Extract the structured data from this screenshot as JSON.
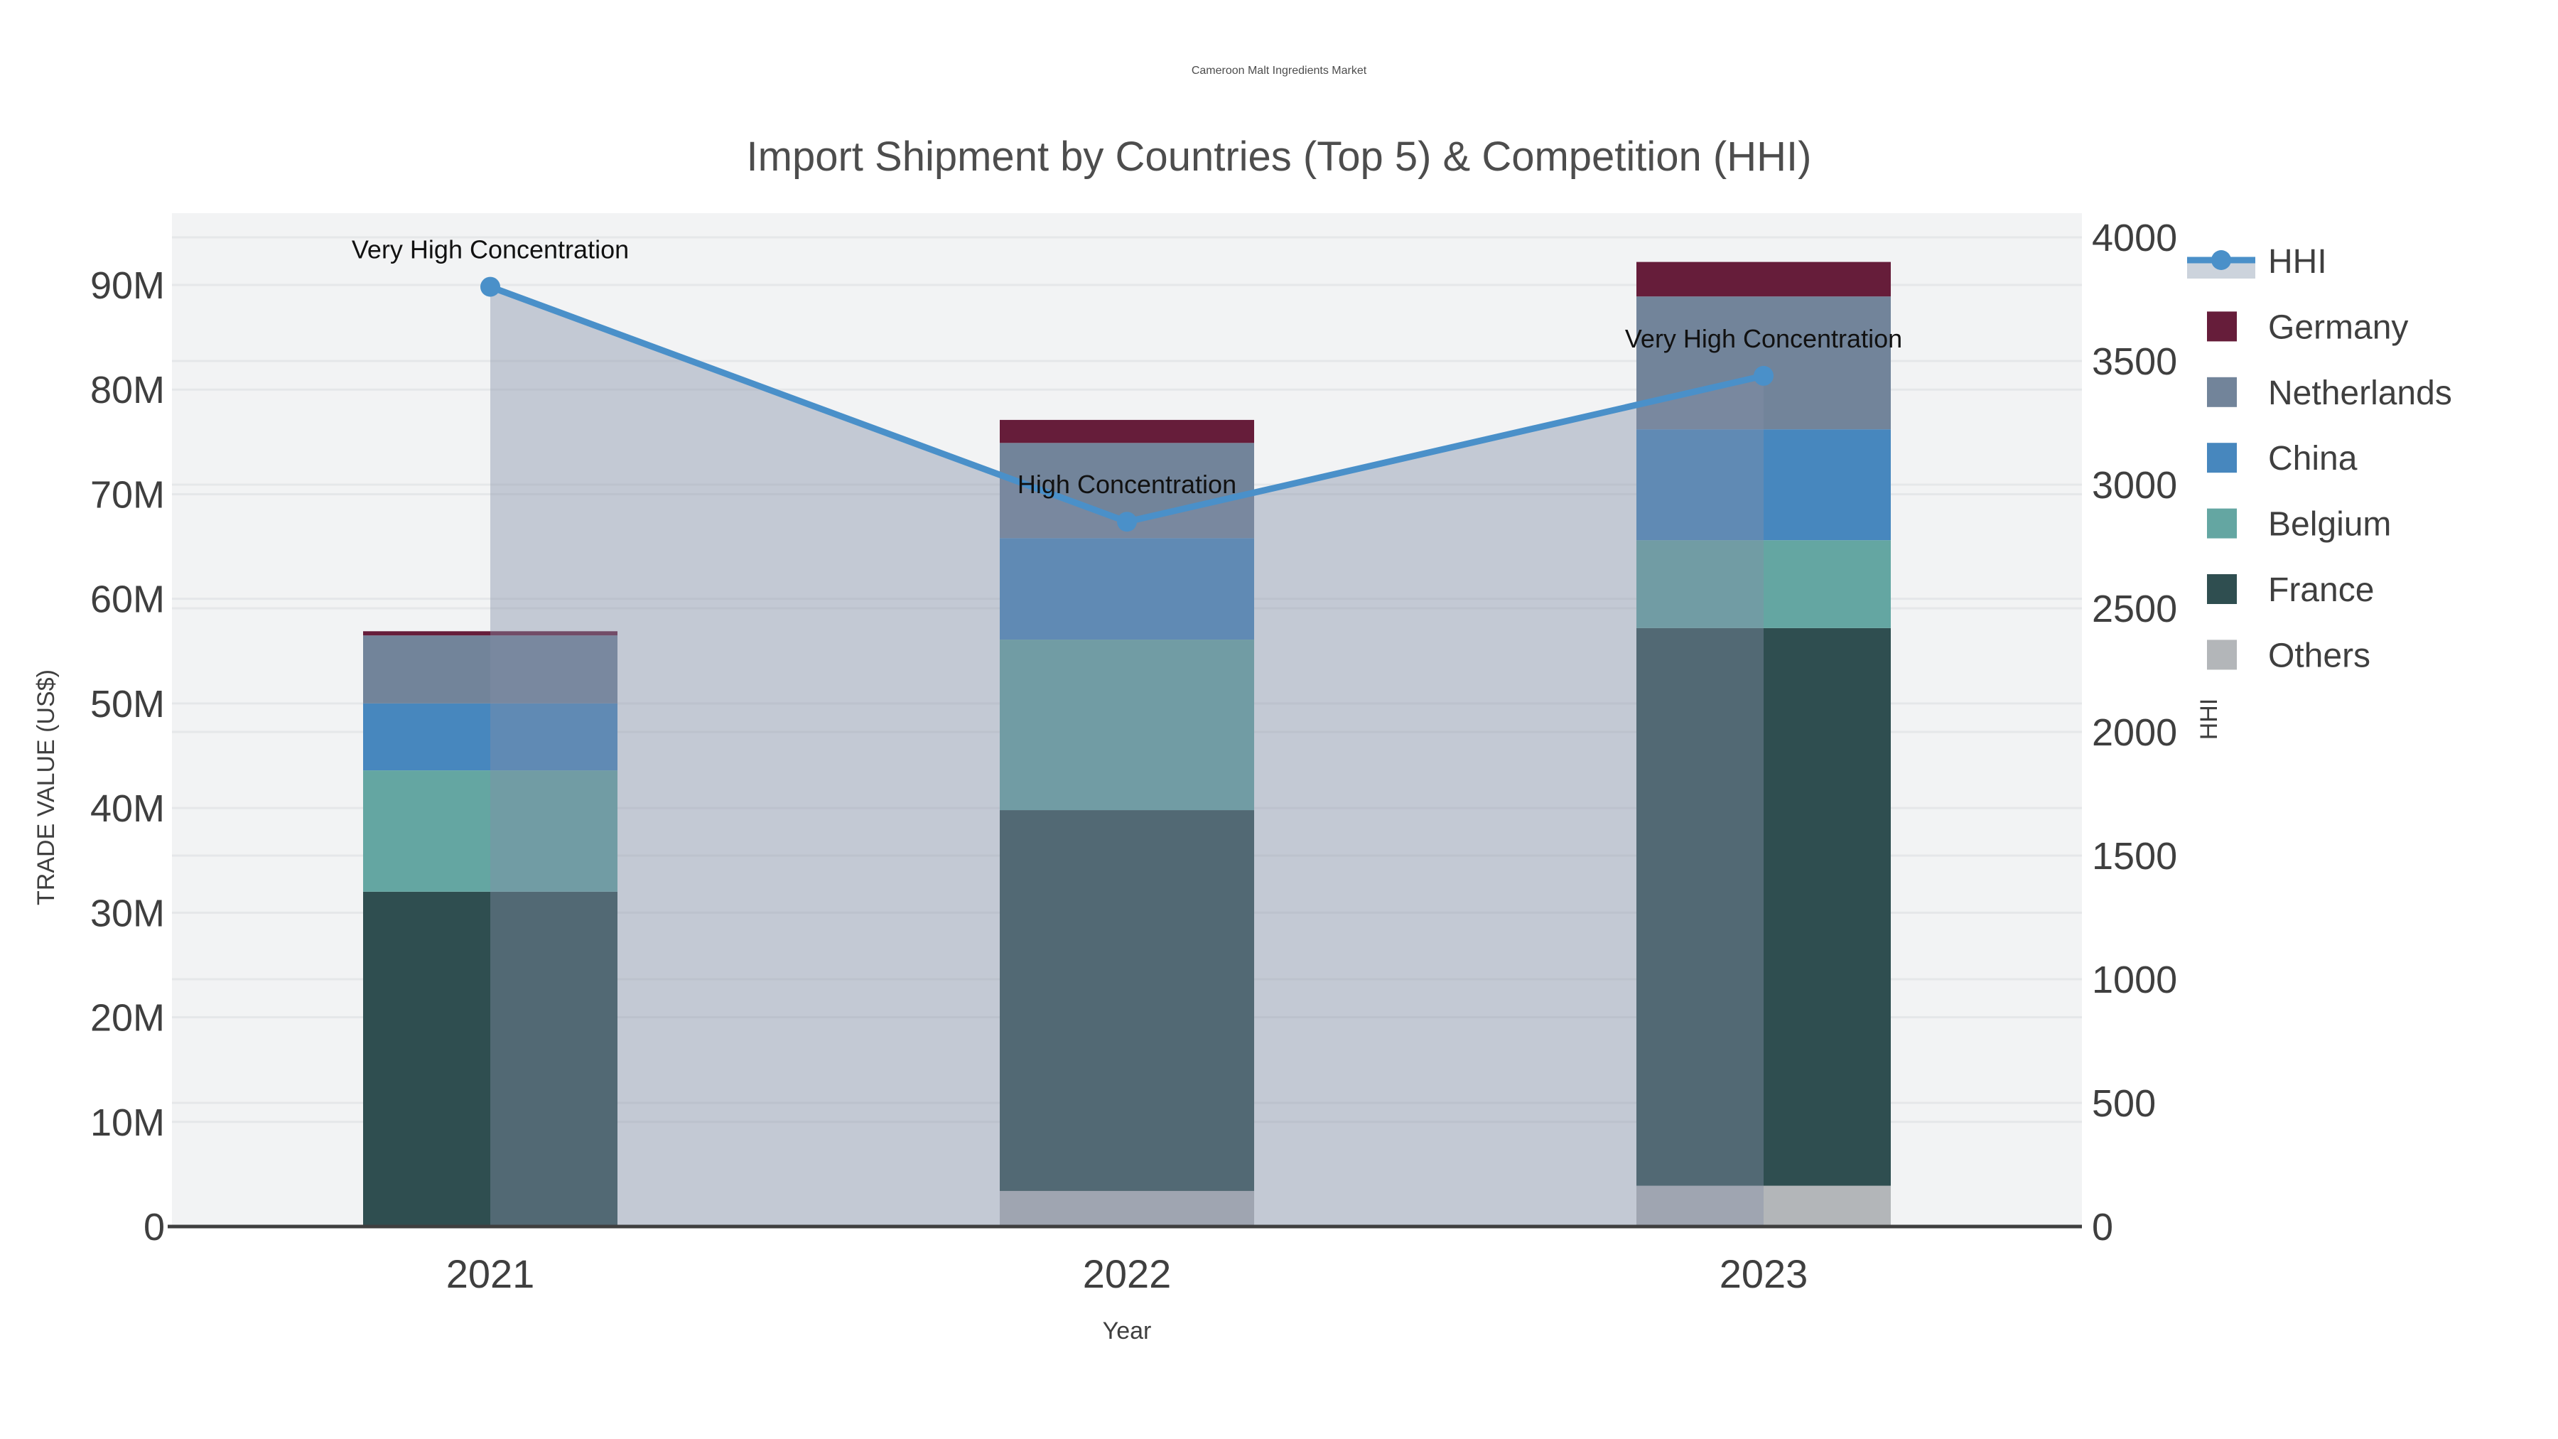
{
  "title": {
    "line1": "Cameroon Malt Ingredients Market",
    "line2": "Import Shipment by Countries (Top 5) & Competition (HHI)"
  },
  "axes": {
    "x": {
      "title": "Year",
      "ticks": [
        "2021",
        "2022",
        "2023"
      ]
    },
    "y_left": {
      "title": "TRADE VALUE (US$)",
      "ticks": [
        "0",
        "10M",
        "20M",
        "30M",
        "40M",
        "50M",
        "60M",
        "70M",
        "80M",
        "90M"
      ],
      "tick_values_millions": [
        0,
        10,
        20,
        30,
        40,
        50,
        60,
        70,
        80,
        90
      ]
    },
    "y_right": {
      "title": "HHI",
      "ticks": [
        "0",
        "500",
        "1000",
        "1500",
        "2000",
        "2500",
        "3000",
        "3500",
        "4000"
      ],
      "tick_values": [
        0,
        500,
        1000,
        1500,
        2000,
        2500,
        3000,
        3500,
        4000
      ],
      "max": 4000
    }
  },
  "chart_data": {
    "type": "combo-stacked-bar-and-line-area",
    "categories": [
      "2021",
      "2022",
      "2023"
    ],
    "bar_unit": "millions US$",
    "stack_order_bottom_to_top": [
      "Others",
      "France",
      "Belgium",
      "China",
      "Netherlands",
      "Germany"
    ],
    "series": [
      {
        "name": "Others",
        "color": "#b3b6b9",
        "values": [
          0.0,
          3.4,
          3.9
        ]
      },
      {
        "name": "France",
        "color": "#2f4e50",
        "values": [
          32.0,
          36.4,
          53.3
        ]
      },
      {
        "name": "Belgium",
        "color": "#64a6a2",
        "values": [
          11.6,
          16.3,
          8.4
        ]
      },
      {
        "name": "China",
        "color": "#4787be",
        "values": [
          6.4,
          9.7,
          10.6
        ]
      },
      {
        "name": "Netherlands",
        "color": "#72849a",
        "values": [
          6.5,
          9.1,
          12.7
        ]
      },
      {
        "name": "Germany",
        "color": "#661d3a",
        "values": [
          0.4,
          2.2,
          3.3
        ]
      }
    ],
    "bar_totals_millions": [
      56.9,
      77.1,
      92.2
    ],
    "line": {
      "name": "HHI",
      "color": "#4a90c9",
      "area_fill": "rgba(130,142,166,0.42)",
      "legend_band_color": "#ccd3dc",
      "values": [
        3800,
        2850,
        3440
      ],
      "axis": "right"
    },
    "annotations": [
      {
        "text": "Very High Concentration",
        "category": "2021",
        "hhi": 3800
      },
      {
        "text": "High Concentration",
        "category": "2022",
        "hhi": 2850
      },
      {
        "text": "Very High Concentration",
        "category": "2023",
        "hhi": 3440
      }
    ],
    "legend_order": [
      "HHI",
      "Germany",
      "Netherlands",
      "China",
      "Belgium",
      "France",
      "Others"
    ],
    "grid": true,
    "legend_position": "right"
  },
  "colors": {
    "plot_bg": "#f2f3f4",
    "grid_line": "#e5e7e9",
    "axis_line": "#3f3f3f",
    "tick_text": "#3f3f3f",
    "title_text": "#4d4d4d",
    "annotation_text": "#111111",
    "legend_text": "#3f3f3f"
  }
}
